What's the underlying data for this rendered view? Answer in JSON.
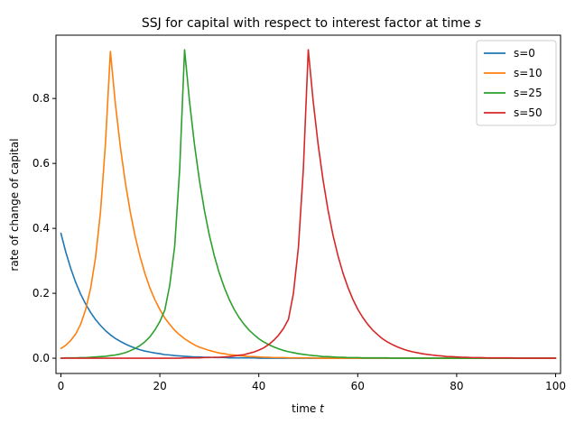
{
  "chart_data": {
    "type": "line",
    "title": "SSJ for capital with respect to interest factor at time ",
    "title_var": "s",
    "xlabel": "time ",
    "xlabel_var": "t",
    "ylabel": "rate of change of capital",
    "xlim": [
      -1,
      101
    ],
    "ylim": [
      -0.047,
      0.995
    ],
    "x_ticks": [
      0,
      20,
      40,
      60,
      80,
      100
    ],
    "y_ticks": [
      0.0,
      0.2,
      0.4,
      0.6,
      0.8
    ],
    "x_tick_labels": [
      "0",
      "20",
      "40",
      "60",
      "80",
      "100"
    ],
    "y_tick_labels": [
      "0.0",
      "0.2",
      "0.4",
      "0.6",
      "0.8"
    ],
    "grid": false,
    "legend_position": "top-right",
    "x": [
      0,
      1,
      2,
      3,
      4,
      5,
      6,
      7,
      8,
      9,
      10,
      11,
      12,
      13,
      14,
      15,
      16,
      17,
      18,
      19,
      20,
      21,
      22,
      23,
      24,
      25,
      26,
      27,
      28,
      29,
      30,
      31,
      32,
      33,
      34,
      35,
      36,
      37,
      38,
      39,
      40,
      41,
      42,
      43,
      44,
      45,
      46,
      47,
      48,
      49,
      50,
      51,
      52,
      53,
      54,
      55,
      56,
      57,
      58,
      59,
      60,
      61,
      62,
      63,
      64,
      65,
      66,
      67,
      68,
      69,
      70,
      71,
      72,
      73,
      74,
      75,
      76,
      77,
      78,
      79,
      80,
      81,
      82,
      83,
      84,
      85,
      86,
      87,
      88,
      89,
      90,
      91,
      92,
      93,
      94,
      95,
      96,
      97,
      98,
      99,
      100
    ],
    "series": [
      {
        "name": "s=0",
        "color": "#1f77b4",
        "values": [
          0.385,
          0.326,
          0.276,
          0.233,
          0.197,
          0.167,
          0.141,
          0.119,
          0.101,
          0.085,
          0.072,
          0.061,
          0.052,
          0.044,
          0.037,
          0.031,
          0.026,
          0.022,
          0.019,
          0.016,
          0.014,
          0.011,
          0.01,
          0.008,
          0.007,
          0.006,
          0.005,
          0.004,
          0.004,
          0.003,
          0.003,
          0.002,
          0.002,
          0.002,
          0.001,
          0.001,
          0.001,
          0.001,
          0.001,
          0.001,
          0.0,
          0.0,
          0.0,
          0.0,
          0.0,
          0.0,
          0.0,
          0.0,
          0.0,
          0.0,
          0.0,
          0.0,
          0.0,
          0.0,
          0.0,
          0.0,
          0.0,
          0.0,
          0.0,
          0.0,
          0.0,
          0.0,
          0.0,
          0.0,
          0.0,
          0.0,
          0.0,
          0.0,
          0.0,
          0.0,
          0.0,
          0.0,
          0.0,
          0.0,
          0.0,
          0.0,
          0.0,
          0.0,
          0.0,
          0.0,
          0.0,
          0.0,
          0.0,
          0.0,
          0.0,
          0.0,
          0.0,
          0.0,
          0.0,
          0.0,
          0.0,
          0.0,
          0.0,
          0.0,
          0.0,
          0.0,
          0.0,
          0.0,
          0.0,
          0.0,
          0.0
        ]
      },
      {
        "name": "s=10",
        "color": "#ff7f0e",
        "values": [
          0.03,
          0.04,
          0.055,
          0.075,
          0.105,
          0.15,
          0.215,
          0.31,
          0.45,
          0.66,
          0.945,
          0.785,
          0.653,
          0.543,
          0.452,
          0.376,
          0.313,
          0.26,
          0.216,
          0.18,
          0.15,
          0.124,
          0.104,
          0.086,
          0.072,
          0.06,
          0.05,
          0.041,
          0.034,
          0.029,
          0.024,
          0.02,
          0.016,
          0.014,
          0.011,
          0.01,
          0.008,
          0.007,
          0.005,
          0.005,
          0.004,
          0.003,
          0.003,
          0.002,
          0.002,
          0.002,
          0.001,
          0.001,
          0.001,
          0.001,
          0.001,
          0.001,
          0.0,
          0.0,
          0.0,
          0.0,
          0.0,
          0.0,
          0.0,
          0.0,
          0.0,
          0.0,
          0.0,
          0.0,
          0.0,
          0.0,
          0.0,
          0.0,
          0.0,
          0.0,
          0.0,
          0.0,
          0.0,
          0.0,
          0.0,
          0.0,
          0.0,
          0.0,
          0.0,
          0.0,
          0.0,
          0.0,
          0.0,
          0.0,
          0.0,
          0.0,
          0.0,
          0.0,
          0.0,
          0.0,
          0.0,
          0.0,
          0.0,
          0.0,
          0.0,
          0.0,
          0.0,
          0.0,
          0.0,
          0.0,
          0.0
        ]
      },
      {
        "name": "s=25",
        "color": "#2ca02c",
        "values": [
          0.0,
          0.001,
          0.001,
          0.001,
          0.002,
          0.002,
          0.003,
          0.004,
          0.005,
          0.006,
          0.008,
          0.01,
          0.013,
          0.017,
          0.023,
          0.03,
          0.039,
          0.051,
          0.066,
          0.087,
          0.113,
          0.148,
          0.225,
          0.345,
          0.58,
          0.95,
          0.791,
          0.658,
          0.548,
          0.456,
          0.379,
          0.316,
          0.263,
          0.219,
          0.182,
          0.151,
          0.126,
          0.105,
          0.087,
          0.073,
          0.06,
          0.05,
          0.042,
          0.035,
          0.029,
          0.024,
          0.02,
          0.017,
          0.014,
          0.012,
          0.01,
          0.008,
          0.007,
          0.005,
          0.005,
          0.004,
          0.003,
          0.003,
          0.002,
          0.002,
          0.002,
          0.001,
          0.001,
          0.001,
          0.001,
          0.001,
          0.001,
          0.0,
          0.0,
          0.0,
          0.0,
          0.0,
          0.0,
          0.0,
          0.0,
          0.0,
          0.0,
          0.0,
          0.0,
          0.0,
          0.0,
          0.0,
          0.0,
          0.0,
          0.0,
          0.0,
          0.0,
          0.0,
          0.0,
          0.0,
          0.0,
          0.0,
          0.0,
          0.0,
          0.0,
          0.0,
          0.0,
          0.0,
          0.0,
          0.0,
          0.0
        ]
      },
      {
        "name": "s=50",
        "color": "#d62728",
        "values": [
          0.0,
          0.0,
          0.0,
          0.0,
          0.0,
          0.0,
          0.0,
          0.0,
          0.0,
          0.0,
          0.0,
          0.0,
          0.0,
          0.0,
          0.0,
          0.0,
          0.0,
          0.0,
          0.0,
          0.0,
          0.0,
          0.0,
          0.0,
          0.0,
          0.0,
          0.001,
          0.001,
          0.001,
          0.001,
          0.002,
          0.002,
          0.003,
          0.003,
          0.004,
          0.005,
          0.007,
          0.009,
          0.011,
          0.015,
          0.019,
          0.025,
          0.032,
          0.042,
          0.055,
          0.071,
          0.092,
          0.12,
          0.2,
          0.34,
          0.58,
          0.95,
          0.791,
          0.658,
          0.548,
          0.456,
          0.379,
          0.316,
          0.263,
          0.219,
          0.182,
          0.151,
          0.126,
          0.105,
          0.087,
          0.073,
          0.06,
          0.05,
          0.042,
          0.035,
          0.029,
          0.024,
          0.02,
          0.017,
          0.014,
          0.012,
          0.01,
          0.008,
          0.007,
          0.005,
          0.005,
          0.004,
          0.003,
          0.003,
          0.002,
          0.002,
          0.002,
          0.001,
          0.001,
          0.001,
          0.001,
          0.001,
          0.001,
          0.0,
          0.0,
          0.0,
          0.0,
          0.0,
          0.0,
          0.0,
          0.0,
          0.0
        ]
      }
    ]
  }
}
